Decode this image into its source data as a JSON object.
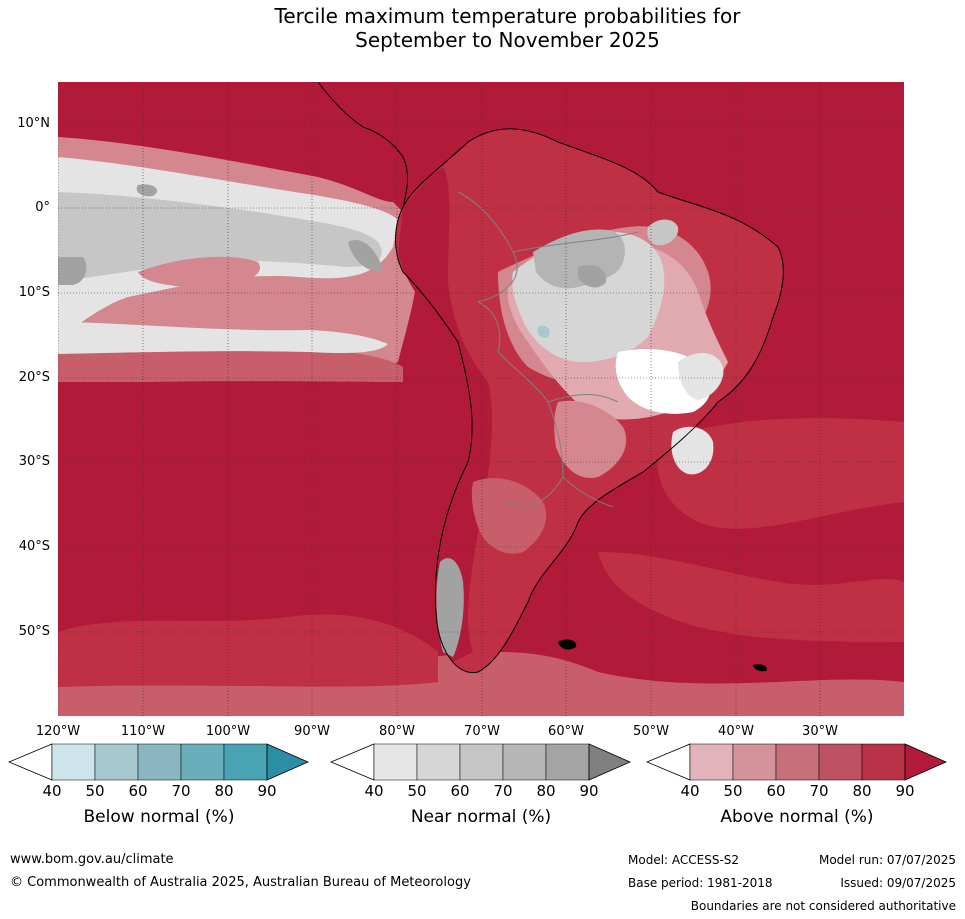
{
  "title": {
    "line1": "Tercile maximum temperature probabilities for",
    "line2": "September to November 2025"
  },
  "map": {
    "lat_labels": [
      "10°N",
      "0°",
      "10°S",
      "20°S",
      "30°S",
      "40°S",
      "50°S"
    ],
    "lon_labels": [
      "120°W",
      "110°W",
      "100°W",
      "90°W",
      "80°W",
      "70°W",
      "60°W",
      "50°W",
      "40°W",
      "30°W"
    ],
    "dominant_category": "Above normal",
    "colors": {
      "above_90": "#b21a3a",
      "above_80": "#c03045",
      "above_70": "#c85e6a",
      "above_60": "#d4878f",
      "above_50": "#e0aab0",
      "above_40": "#f2dcdf",
      "near_50": "#e4e4e4",
      "near_60": "#d6d6d6",
      "near_70": "#c6c6c6",
      "near_80": "#b4b4b4",
      "near_90": "#a2a2a2",
      "below_50": "#a8c8cf",
      "land_border": "#000000",
      "country_border": "#808080"
    }
  },
  "legends": [
    {
      "label": "Below normal (%)",
      "ticks": [
        "40",
        "50",
        "60",
        "70",
        "80",
        "90"
      ],
      "colors": [
        "#ffffff",
        "#cce4ea",
        "#a8c8cf",
        "#8ab6c2",
        "#6aaebc",
        "#48a3b3",
        "#2a8fa5"
      ]
    },
    {
      "label": "Near normal (%)",
      "ticks": [
        "40",
        "50",
        "60",
        "70",
        "80",
        "90"
      ],
      "colors": [
        "#ffffff",
        "#e6e6e6",
        "#d6d6d6",
        "#c6c6c6",
        "#b6b6b6",
        "#a4a4a4",
        "#808080"
      ]
    },
    {
      "label": "Above normal (%)",
      "ticks": [
        "40",
        "50",
        "60",
        "70",
        "80",
        "90"
      ],
      "colors": [
        "#ffffff",
        "#e0b4ba",
        "#d4929a",
        "#c8707a",
        "#bf5262",
        "#b93248",
        "#b21a3a"
      ]
    }
  ],
  "footer": {
    "url": "www.bom.gov.au/climate",
    "copyright": "© Commonwealth of Australia 2025, Australian Bureau of Meteorology",
    "model": "Model: ACCESS-S2",
    "model_run": "Model run: 07/07/2025",
    "base_period": "Base period: 1981-2018",
    "issued": "Issued: 09/07/2025",
    "disclaimer": "Boundaries are not considered authoritative"
  }
}
